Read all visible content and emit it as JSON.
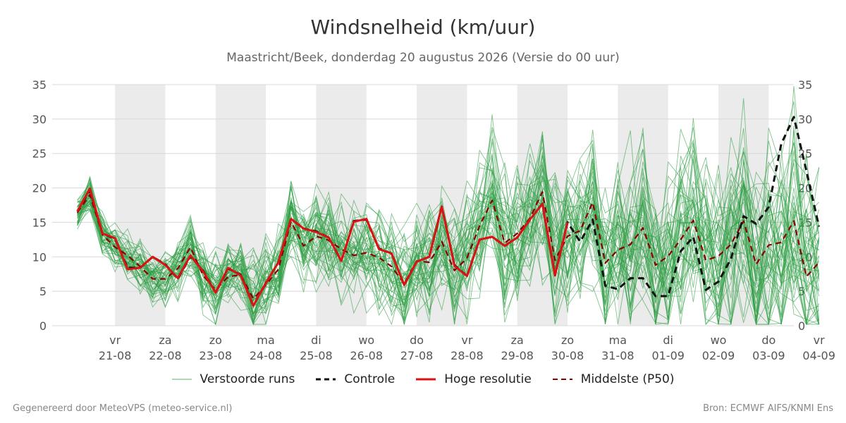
{
  "header": {
    "title": "Windsnelheid (km/uur)",
    "subtitle": "Maastricht/Beek, donderdag 20 augustus 2026 (Versie do 00 uur)"
  },
  "footer": {
    "left": "Gegenereerd door MeteoVPS (meteo-service.nl)",
    "right": "Bron: ECMWF AIFS/KNMI Ens"
  },
  "colors": {
    "ensemble": "#2e9e44",
    "control": "#111111",
    "hires": "#dd1111",
    "median": "#8b0000",
    "weekend_shade": "#ebebeb"
  },
  "chart_data": {
    "type": "line",
    "title": "Windsnelheid (km/uur)",
    "ylim": [
      0,
      35
    ],
    "yticks": [
      0,
      5,
      10,
      15,
      20,
      25,
      30,
      35
    ],
    "xlim": [
      -1.25,
      13.5
    ],
    "x_step_days": 0.25,
    "x_ticks": [
      {
        "day": "vr",
        "date": "21-08"
      },
      {
        "day": "za",
        "date": "22-08"
      },
      {
        "day": "zo",
        "date": "23-08"
      },
      {
        "day": "ma",
        "date": "24-08"
      },
      {
        "day": "di",
        "date": "25-08"
      },
      {
        "day": "wo",
        "date": "26-08"
      },
      {
        "day": "do",
        "date": "27-08"
      },
      {
        "day": "vr",
        "date": "28-08"
      },
      {
        "day": "za",
        "date": "29-08"
      },
      {
        "day": "zo",
        "date": "30-08"
      },
      {
        "day": "ma",
        "date": "31-08"
      },
      {
        "day": "di",
        "date": "01-09"
      },
      {
        "day": "wo",
        "date": "02-09"
      },
      {
        "day": "do",
        "date": "03-09"
      },
      {
        "day": "vr",
        "date": "04-09"
      }
    ],
    "shaded_days": [
      0,
      2,
      4,
      6,
      8,
      10,
      12
    ],
    "grid": true,
    "legend_position": "bottom",
    "legend": [
      {
        "key": "ensemble",
        "label": "Verstoorde runs"
      },
      {
        "key": "control",
        "label": "Controle"
      },
      {
        "key": "hires",
        "label": "Hoge resolutie"
      },
      {
        "key": "median",
        "label": "Middelste (P50)"
      }
    ],
    "ensemble_count": 50,
    "series": [
      {
        "name": "Controle",
        "x_start": -0.75,
        "x_step": 0.25,
        "values": [
          16.6,
          19.7,
          13.4,
          12.6,
          8.4,
          8.4,
          10.0,
          8.9,
          6.8,
          10.1,
          8.0,
          4.8,
          8.3,
          7.4,
          2.9,
          6.2,
          9.2,
          15.5,
          14.1,
          13.7,
          12.8,
          9.4,
          15.2,
          15.4,
          11.2,
          10.5,
          5.9,
          9.3,
          10.0,
          17.3,
          8.8,
          7.2,
          12.5,
          12.9,
          11.6,
          12.8,
          15.4,
          17.7,
          7.3,
          15.0,
          12.2,
          15.4,
          5.8,
          5.3,
          6.9,
          6.9,
          4.3,
          4.3,
          10.8,
          12.9,
          5.2,
          6.4,
          9.7,
          15.9,
          14.8,
          17.2,
          26.4,
          30.3,
          22.5,
          14.4
        ]
      },
      {
        "name": "Hoge resolutie",
        "x_start": -0.75,
        "x_step": 0.25,
        "values": [
          16.6,
          19.9,
          13.4,
          12.7,
          8.2,
          8.4,
          10.0,
          8.8,
          6.9,
          10.2,
          7.9,
          4.8,
          8.4,
          7.3,
          2.9,
          6.2,
          9.2,
          15.5,
          14.1,
          13.6,
          12.8,
          9.4,
          15.1,
          15.5,
          11.1,
          10.5,
          5.9,
          9.3,
          10.0,
          17.3,
          8.7,
          7.2,
          12.5,
          12.9,
          11.6,
          12.8,
          15.4,
          17.7,
          7.3,
          15.0
        ]
      },
      {
        "name": "Middelste (P50)",
        "x_start": -0.75,
        "x_step": 0.25,
        "values": [
          16.4,
          19.0,
          13.2,
          11.4,
          10.2,
          8.6,
          6.8,
          6.8,
          8.3,
          11.4,
          7.3,
          5.2,
          7.1,
          7.4,
          3.9,
          5.9,
          8.2,
          15.1,
          11.6,
          13.0,
          12.4,
          11.1,
          10.2,
          10.6,
          9.9,
          8.6,
          6.1,
          9.4,
          9.2,
          12.2,
          8.0,
          9.8,
          14.5,
          18.2,
          12.0,
          13.4,
          15.6,
          19.4,
          9.5,
          13.0,
          13.8,
          17.9,
          9.1,
          11.0,
          11.8,
          14.2,
          8.8,
          10.1,
          12.5,
          15.3,
          9.5,
          10.1,
          11.8,
          15.2,
          8.9,
          11.7,
          12.1,
          15.2,
          7.1,
          9.2
        ]
      }
    ]
  }
}
